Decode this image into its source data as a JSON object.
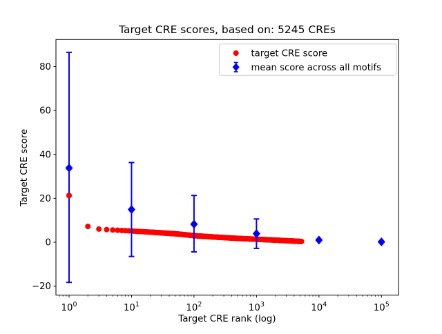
{
  "chart_data": {
    "type": "scatter",
    "title": "Target CRE scores, based on: 5245 CREs",
    "xlabel": "Target CRE rank (log)",
    "ylabel": "Target CRE score",
    "x_scale": "log",
    "xlim_log10": [
      -0.21,
      5.28
    ],
    "ylim": [
      -24.1,
      92.4
    ],
    "grid": false,
    "n_cres": 5245,
    "x_ticks": [
      {
        "base": "10",
        "exp": "0",
        "log10": 0
      },
      {
        "base": "10",
        "exp": "1",
        "log10": 1
      },
      {
        "base": "10",
        "exp": "2",
        "log10": 2
      },
      {
        "base": "10",
        "exp": "3",
        "log10": 3
      },
      {
        "base": "10",
        "exp": "4",
        "log10": 4
      },
      {
        "base": "10",
        "exp": "5",
        "log10": 5
      }
    ],
    "y_ticks": [
      {
        "value": 80,
        "label": "80"
      },
      {
        "value": 60,
        "label": "60"
      },
      {
        "value": 40,
        "label": "40"
      },
      {
        "value": 20,
        "label": "20"
      },
      {
        "value": 0,
        "label": "0"
      },
      {
        "value": -20,
        "label": "−20"
      }
    ],
    "series": [
      {
        "name": "target CRE score",
        "type": "scatter",
        "marker": "circle",
        "color": "#ff0000",
        "n_points": 5245,
        "anchors_log10rank_value": [
          [
            0,
            21.3
          ],
          [
            0.301,
            7.2
          ],
          [
            0.477,
            6.0
          ],
          [
            0.602,
            5.75
          ],
          [
            0.778,
            5.45
          ],
          [
            1.0,
            5.1
          ],
          [
            1.301,
            4.6
          ],
          [
            1.699,
            3.85
          ],
          [
            2.0,
            3.0
          ],
          [
            2.301,
            2.4
          ],
          [
            2.699,
            1.75
          ],
          [
            3.0,
            1.35
          ],
          [
            3.301,
            0.95
          ],
          [
            3.544,
            0.6
          ],
          [
            3.7197,
            0.35
          ]
        ],
        "front_point": {
          "rank": 1,
          "value": 21.3
        }
      },
      {
        "name": "mean score across all motifs",
        "type": "errorbar",
        "marker": "diamond",
        "color": "#0000ff",
        "x": [
          1,
          10,
          100,
          1000,
          10000,
          100000
        ],
        "mean": [
          33.8,
          14.9,
          8.2,
          3.9,
          1.0,
          0.15
        ],
        "err_lo": [
          -18.3,
          -6.5,
          -4.4,
          -2.8,
          null,
          null
        ],
        "err_hi": [
          86.5,
          36.3,
          21.3,
          10.6,
          null,
          null
        ]
      }
    ],
    "legend": {
      "position": "upper right",
      "items": [
        {
          "label": "target CRE score",
          "marker": "circle",
          "color": "#ff0000"
        },
        {
          "label": "mean score across all motifs",
          "marker": "diamond-errorbar",
          "color": "#0000ff"
        }
      ]
    },
    "colors": {
      "target_series": "#ff0000",
      "mean_series": "#0000ff",
      "axes": "#000000",
      "legend_border": "#cccccc",
      "background": "#ffffff"
    }
  }
}
